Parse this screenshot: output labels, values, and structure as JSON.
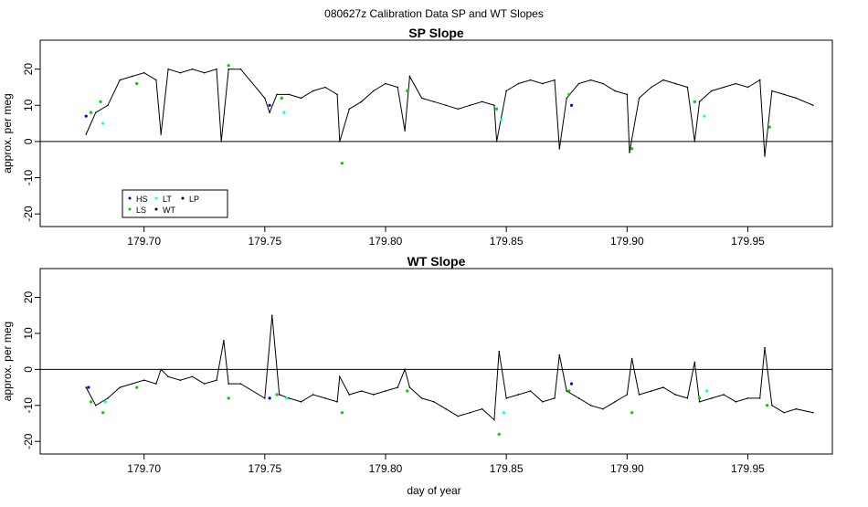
{
  "title": "080627z   Calibration Data SP and WT Slopes",
  "xlabel": "day of year",
  "chart_data": [
    {
      "type": "line",
      "title": "SP Slope",
      "ylabel": "approx. per meg",
      "xlim": [
        179.657,
        179.985
      ],
      "ylim": [
        -23.5,
        28
      ],
      "x_ticks": [
        179.7,
        179.75,
        179.8,
        179.85,
        179.9,
        179.95
      ],
      "x_tick_labels": [
        "179.70",
        "179.75",
        "179.80",
        "179.85",
        "179.90",
        "179.95"
      ],
      "y_ticks": [
        -20,
        -10,
        0,
        10,
        20
      ],
      "y_tick_labels": [
        "-20",
        "-10",
        "0",
        "10",
        "20"
      ],
      "reference_line": 0,
      "legend": {
        "placement": "bottom-left",
        "entries": [
          {
            "label": "HS",
            "color": "#0000cc"
          },
          {
            "label": "LT",
            "color": "#00ffff"
          },
          {
            "label": "LP",
            "color": "#000000"
          },
          {
            "label": "LS",
            "color": "#00cc00"
          },
          {
            "label": "WT",
            "color": "#000000"
          }
        ]
      },
      "series": [
        {
          "name": "WT",
          "color": "#000000",
          "x": [
            179.676,
            179.68,
            179.685,
            179.69,
            179.695,
            179.7,
            179.705,
            179.707,
            179.71,
            179.715,
            179.72,
            179.725,
            179.73,
            179.732,
            179.735,
            179.74,
            179.75,
            179.752,
            179.755,
            179.76,
            179.765,
            179.77,
            179.775,
            179.78,
            179.781,
            179.785,
            179.79,
            179.795,
            179.8,
            179.805,
            179.808,
            179.81,
            179.815,
            179.82,
            179.825,
            179.83,
            179.835,
            179.84,
            179.845,
            179.846,
            179.85,
            179.855,
            179.86,
            179.865,
            179.87,
            179.872,
            179.875,
            179.88,
            179.885,
            179.89,
            179.895,
            179.9,
            179.901,
            179.905,
            179.91,
            179.915,
            179.92,
            179.925,
            179.928,
            179.93,
            179.935,
            179.94,
            179.945,
            179.95,
            179.955,
            179.957,
            179.96,
            179.965,
            179.97,
            179.977
          ],
          "values": [
            2,
            8,
            10,
            17,
            18,
            19,
            17,
            2,
            20,
            19,
            20,
            19,
            20,
            0,
            20,
            20,
            12,
            8,
            13,
            13,
            12,
            14,
            15,
            13,
            0,
            9,
            11,
            14,
            16,
            15,
            3,
            18,
            12,
            11,
            10,
            9,
            10,
            11,
            10,
            0,
            14,
            16,
            17,
            16,
            17,
            -2,
            12,
            16,
            17,
            16,
            14,
            13,
            -3,
            12,
            15,
            17,
            16,
            15,
            0,
            11,
            14,
            15,
            16,
            15,
            17,
            -4,
            14,
            13,
            12,
            10
          ]
        },
        {
          "name": "LS",
          "color": "#00cc00",
          "x": [
            179.678,
            179.682,
            179.697,
            179.735,
            179.757,
            179.782,
            179.809,
            179.846,
            179.876,
            179.902,
            179.928,
            179.959
          ],
          "values": [
            8,
            11,
            16,
            21,
            12,
            -6,
            14,
            9,
            13,
            -2,
            11,
            4
          ]
        },
        {
          "name": "HS",
          "color": "#0000cc",
          "x": [
            179.676,
            179.752,
            179.877
          ],
          "values": [
            7,
            10,
            10
          ]
        },
        {
          "name": "LT",
          "color": "#00ffff",
          "x": [
            179.683,
            179.758,
            179.848,
            179.932
          ],
          "values": [
            5,
            8,
            6,
            7
          ]
        }
      ]
    },
    {
      "type": "line",
      "title": "WT Slope",
      "ylabel": "approx. per meg",
      "xlim": [
        179.657,
        179.985
      ],
      "ylim": [
        -23.5,
        28
      ],
      "x_ticks": [
        179.7,
        179.75,
        179.8,
        179.85,
        179.9,
        179.95
      ],
      "x_tick_labels": [
        "179.70",
        "179.75",
        "179.80",
        "179.85",
        "179.90",
        "179.95"
      ],
      "y_ticks": [
        -20,
        -10,
        0,
        10,
        20
      ],
      "y_tick_labels": [
        "-20",
        "-10",
        "0",
        "10",
        "20"
      ],
      "reference_line": 0,
      "series": [
        {
          "name": "WT",
          "color": "#000000",
          "x": [
            179.676,
            179.68,
            179.685,
            179.69,
            179.695,
            179.7,
            179.705,
            179.707,
            179.71,
            179.715,
            179.72,
            179.725,
            179.73,
            179.733,
            179.735,
            179.74,
            179.75,
            179.753,
            179.756,
            179.76,
            179.765,
            179.77,
            179.775,
            179.78,
            179.781,
            179.785,
            179.79,
            179.795,
            179.8,
            179.805,
            179.808,
            179.81,
            179.815,
            179.82,
            179.825,
            179.83,
            179.835,
            179.84,
            179.845,
            179.847,
            179.85,
            179.855,
            179.86,
            179.865,
            179.87,
            179.872,
            179.875,
            179.88,
            179.885,
            179.89,
            179.895,
            179.9,
            179.902,
            179.905,
            179.91,
            179.915,
            179.92,
            179.925,
            179.928,
            179.93,
            179.935,
            179.94,
            179.945,
            179.95,
            179.955,
            179.957,
            179.96,
            179.965,
            179.97,
            179.977
          ],
          "values": [
            -5,
            -10,
            -8,
            -5,
            -4,
            -3,
            -4,
            0,
            -2,
            -3,
            -2,
            -4,
            -3,
            8,
            -4,
            -4,
            -8,
            15,
            -7,
            -8,
            -9,
            -7,
            -8,
            -9,
            -2,
            -7,
            -6,
            -7,
            -6,
            -5,
            0,
            -5,
            -8,
            -9,
            -11,
            -13,
            -12,
            -11,
            -14,
            5,
            -8,
            -7,
            -6,
            -9,
            -8,
            4,
            -6,
            -8,
            -10,
            -11,
            -9,
            -7,
            3,
            -7,
            -6,
            -5,
            -7,
            -8,
            2,
            -9,
            -8,
            -7,
            -9,
            -8,
            -8,
            6,
            -10,
            -12,
            -11,
            -12
          ]
        },
        {
          "name": "LS",
          "color": "#00cc00",
          "x": [
            179.678,
            179.683,
            179.697,
            179.735,
            179.755,
            179.782,
            179.809,
            179.847,
            179.876,
            179.902,
            179.93,
            179.958
          ],
          "values": [
            -9,
            -12,
            -5,
            -8,
            -7,
            -12,
            -6,
            -18,
            -6,
            -12,
            -8,
            -10
          ]
        },
        {
          "name": "HS",
          "color": "#0000cc",
          "x": [
            179.677,
            179.752,
            179.877
          ],
          "values": [
            -5,
            -8,
            -4
          ]
        },
        {
          "name": "LT",
          "color": "#00ffff",
          "x": [
            179.684,
            179.759,
            179.849,
            179.933
          ],
          "values": [
            -9,
            -8,
            -12,
            -6
          ]
        }
      ]
    }
  ]
}
